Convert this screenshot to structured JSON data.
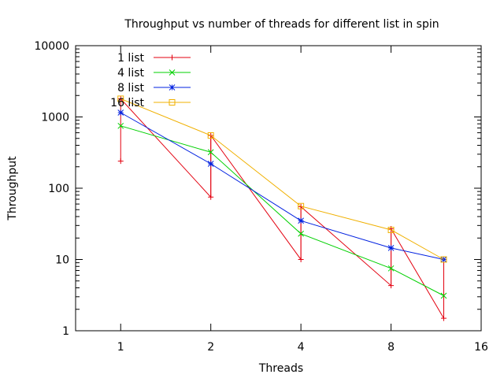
{
  "chart_data": {
    "type": "line",
    "title": "Throughput vs number of threads for different list in spin",
    "xlabel": "Threads",
    "ylabel": "Throughput",
    "x_scale": "log2",
    "y_scale": "log10",
    "xlim": [
      0.707,
      16
    ],
    "ylim": [
      1,
      10000
    ],
    "x_ticks": [
      1,
      2,
      4,
      8,
      16
    ],
    "x_tick_labels": [
      "1",
      "2",
      "4",
      "8",
      "16"
    ],
    "y_ticks": [
      1,
      10,
      100,
      1000,
      10000
    ],
    "y_tick_labels": [
      "1",
      "10",
      "100",
      "1000",
      "10000"
    ],
    "x": [
      1,
      2,
      4,
      8,
      12
    ],
    "grid": false,
    "legend_position": "top-left",
    "series": [
      {
        "name": "1 list",
        "color": "#e3000f",
        "marker": "plus",
        "values": [
          1800,
          550,
          55,
          27,
          10
        ],
        "repeated_vertical_segments": [
          [
            240,
            1800
          ],
          [
            75,
            550
          ],
          [
            10,
            55
          ],
          [
            4.3,
            27
          ],
          [
            1.5,
            10
          ]
        ],
        "line_points": [
          [
            1,
            1800
          ],
          [
            2,
            75
          ],
          [
            2,
            550
          ],
          [
            4,
            10
          ],
          [
            4,
            55
          ],
          [
            8,
            4.3
          ],
          [
            8,
            27
          ],
          [
            12,
            1.5
          ]
        ]
      },
      {
        "name": "4 list",
        "color": "#00d000",
        "marker": "x",
        "values": [
          750,
          320,
          23,
          7.5,
          3.1
        ]
      },
      {
        "name": "8 list",
        "color": "#0020e0",
        "marker": "star",
        "values": [
          1150,
          220,
          35,
          14.5,
          10
        ]
      },
      {
        "name": "16 list",
        "color": "#f0b000",
        "marker": "box",
        "values": [
          1800,
          550,
          56,
          26,
          10
        ]
      }
    ]
  }
}
